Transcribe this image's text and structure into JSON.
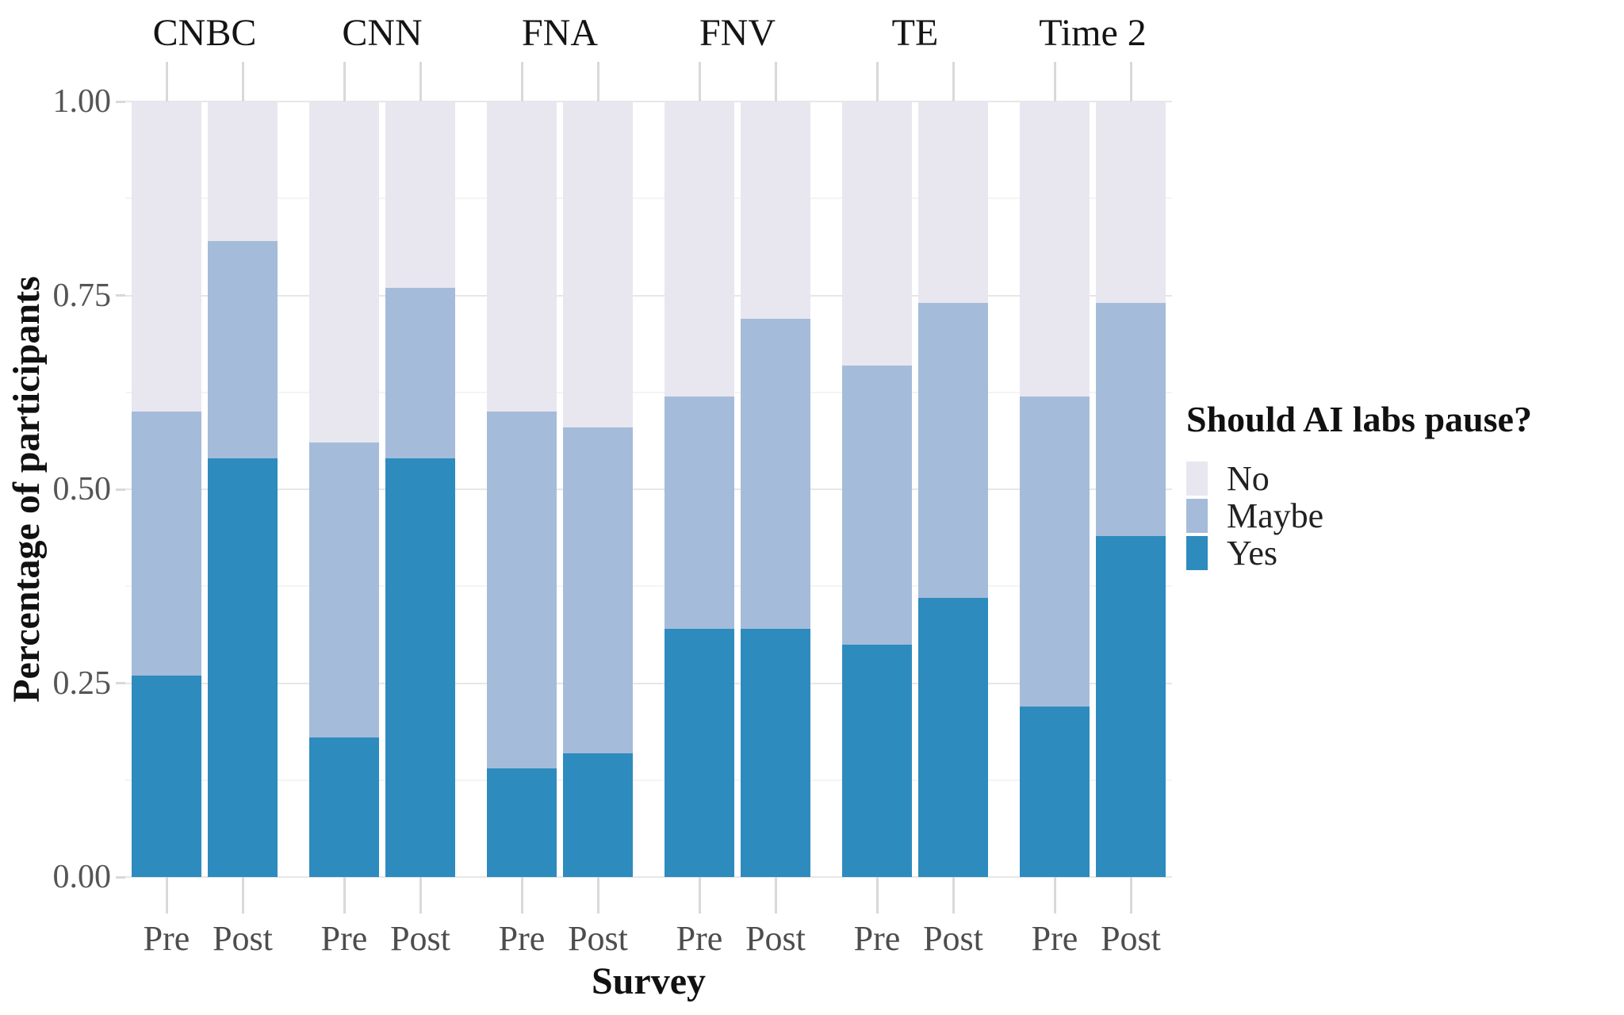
{
  "chart_data": {
    "type": "bar",
    "stacked": true,
    "title": "",
    "xlabel": "Survey",
    "ylabel": "Percentage of participants",
    "ylim": [
      0,
      1
    ],
    "grid": true,
    "minor_grid_step": 0.125,
    "y_ticks": [
      {
        "label": "1.00",
        "value": 1.0
      },
      {
        "label": "0.75",
        "value": 0.75
      },
      {
        "label": "0.50",
        "value": 0.5
      },
      {
        "label": "0.25",
        "value": 0.25
      },
      {
        "label": "0.00",
        "value": 0.0
      }
    ],
    "bar_labels": [
      "Pre",
      "Post"
    ],
    "stack_order_bottom_to_top": [
      "yes",
      "maybe",
      "no"
    ],
    "colors": {
      "no": "#e8e7f0",
      "maybe": "#a4bcda",
      "yes": "#2e8bbe"
    },
    "facets": [
      {
        "label": "CNBC",
        "pre": {
          "yes": 0.26,
          "maybe": 0.34,
          "no": 0.4
        },
        "post": {
          "yes": 0.54,
          "maybe": 0.28,
          "no": 0.18
        }
      },
      {
        "label": "CNN",
        "pre": {
          "yes": 0.18,
          "maybe": 0.38,
          "no": 0.44
        },
        "post": {
          "yes": 0.54,
          "maybe": 0.22,
          "no": 0.24
        }
      },
      {
        "label": "FNA",
        "pre": {
          "yes": 0.14,
          "maybe": 0.46,
          "no": 0.4
        },
        "post": {
          "yes": 0.16,
          "maybe": 0.42,
          "no": 0.42
        }
      },
      {
        "label": "FNV",
        "pre": {
          "yes": 0.32,
          "maybe": 0.3,
          "no": 0.38
        },
        "post": {
          "yes": 0.32,
          "maybe": 0.4,
          "no": 0.28
        }
      },
      {
        "label": "TE",
        "pre": {
          "yes": 0.3,
          "maybe": 0.36,
          "no": 0.34
        },
        "post": {
          "yes": 0.36,
          "maybe": 0.38,
          "no": 0.26
        }
      },
      {
        "label": "Time 2",
        "pre": {
          "yes": 0.22,
          "maybe": 0.4,
          "no": 0.38
        },
        "post": {
          "yes": 0.44,
          "maybe": 0.3,
          "no": 0.26
        }
      }
    ],
    "legend": {
      "title": "Should AI labs pause?",
      "position": "right",
      "entries": [
        {
          "label": "No",
          "key": "no"
        },
        {
          "label": "Maybe",
          "key": "maybe"
        },
        {
          "label": "Yes",
          "key": "yes"
        }
      ]
    }
  }
}
